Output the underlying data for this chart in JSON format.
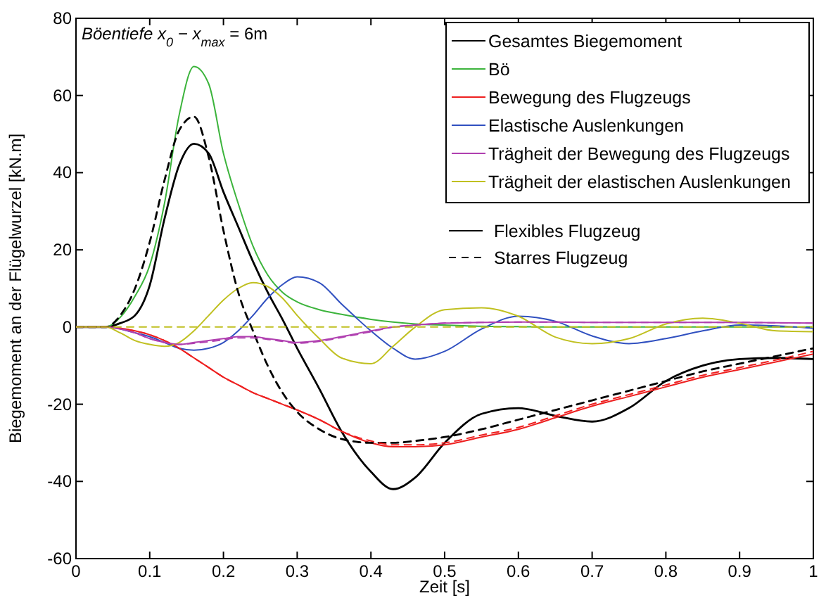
{
  "chart_data": {
    "type": "line",
    "xlabel": "Zeit [s]",
    "ylabel": "Biegemoment an der Flügelwurzel [kN.m]",
    "xlim": [
      0,
      1
    ],
    "xticks": [
      0,
      0.1,
      0.2,
      0.3,
      0.4,
      0.5,
      0.6,
      0.7,
      0.8,
      0.9,
      1
    ],
    "ylim": [
      -60,
      80
    ],
    "yticks": [
      -60,
      -40,
      -20,
      0,
      20,
      40,
      60,
      80
    ],
    "grid": false,
    "legend": "top right",
    "annotations": [
      "Böentiefe   x$_{0}$ − x$_{max}$ =  6m",
      "Flexibles Flugzeug",
      "Starres Flugzeug"
    ],
    "x": [
      0,
      0.04,
      0.06,
      0.08,
      0.1,
      0.12,
      0.14,
      0.16,
      0.18,
      0.2,
      0.22,
      0.24,
      0.26,
      0.28,
      0.3,
      0.33,
      0.36,
      0.4,
      0.43,
      0.46,
      0.5,
      0.55,
      0.6,
      0.65,
      0.7,
      0.75,
      0.8,
      0.85,
      0.9,
      0.95,
      1
    ],
    "series": [
      {
        "name": "Gesamtes Biegemoment",
        "color": "#000000",
        "line_style": "solid",
        "values": [
          0,
          0,
          1,
          3,
          10.8,
          28,
          42,
          47.5,
          45,
          35,
          26,
          17,
          9,
          2,
          -5.5,
          -16,
          -27,
          -37.5,
          -42,
          -39,
          -30,
          -22.5,
          -21,
          -23,
          -24.5,
          -21,
          -14,
          -10,
          -8.3,
          -8,
          -8.3
        ]
      },
      {
        "name": "Bö",
        "color": "#3cb43c",
        "line_style": "solid",
        "values": [
          0,
          0,
          2.5,
          8,
          16,
          32,
          55,
          67.5,
          63,
          45,
          32,
          21,
          13.5,
          9,
          6.5,
          4.5,
          3.3,
          2,
          1.3,
          0.8,
          0.5,
          0.2,
          0.1,
          0,
          0,
          0,
          0,
          0,
          0,
          0,
          0
        ]
      },
      {
        "name": "Bewegung des Flugzeugs",
        "color": "#ee2020",
        "line_style": "solid",
        "values": [
          0,
          0,
          -0.3,
          -1,
          -2,
          -3.5,
          -5.5,
          -8,
          -10.5,
          -13,
          -15,
          -17,
          -18.5,
          -20,
          -21.5,
          -24,
          -27,
          -30,
          -31,
          -31,
          -30.5,
          -28.5,
          -26.5,
          -23.5,
          -20.5,
          -18,
          -15.5,
          -13,
          -11,
          -9,
          -7
        ]
      },
      {
        "name": "Elastische Auslenkungen",
        "color": "#3050c0",
        "line_style": "solid",
        "values": [
          null,
          null,
          -0.5,
          -1.5,
          -2.5,
          -4,
          -5.5,
          -6,
          -5.5,
          -4,
          -1,
          3,
          7.5,
          11,
          13,
          11.5,
          6,
          -1,
          -5.5,
          -8.3,
          -6.3,
          -0.5,
          2.8,
          1.5,
          -2.3,
          -4.3,
          -3,
          -1,
          0.5,
          0.3,
          -0.3
        ]
      },
      {
        "name": "Trägheit der Bewegung des Flugzeugs",
        "color": "#b040b0",
        "line_style": "solid",
        "values": [
          0,
          0,
          -0.5,
          -1.5,
          -3,
          -4,
          -4.5,
          -4,
          -3.5,
          -3,
          -2.5,
          -2.5,
          -3,
          -3.5,
          -4,
          -3.5,
          -2.5,
          -1,
          0,
          0.5,
          1,
          1.2,
          1.3,
          1.3,
          1.2,
          1.2,
          1.2,
          1.2,
          1.2,
          1.1,
          1
        ]
      },
      {
        "name": "Trägheit der elastischen Auslenkungen",
        "color": "#c0c020",
        "line_style": "solid",
        "values": [
          0,
          0,
          -1.5,
          -3.5,
          -4.5,
          -5,
          -4,
          -1,
          3,
          7,
          10,
          11.5,
          10.5,
          7.5,
          3,
          -3,
          -8,
          -9.5,
          -5,
          0,
          4.5,
          5,
          2.8,
          -2.6,
          -4.3,
          -3,
          0.8,
          2.3,
          1,
          -1,
          -1.2
        ]
      },
      {
        "color": "#000000",
        "line_style": "dashed",
        "values": [
          0,
          0,
          3,
          10,
          22,
          38,
          51,
          54.5,
          44,
          25,
          9,
          -1,
          -10,
          -17,
          -22,
          -26.5,
          -29,
          -30,
          -30,
          -29.5,
          -28.5,
          -26.5,
          -24,
          -21.5,
          -19,
          -16.5,
          -14,
          -11.5,
          -9.5,
          -7.5,
          -5.5
        ]
      },
      {
        "color": "#ee2020",
        "line_style": "dashed",
        "values": [
          0,
          0,
          -0.3,
          -1,
          -2,
          -3.5,
          -5.5,
          -8,
          -10.5,
          -13,
          -15,
          -17,
          -18.5,
          -20,
          -21.5,
          -24,
          -27,
          -29.5,
          -30.5,
          -30.5,
          -30,
          -28,
          -26,
          -23,
          -20,
          -17.5,
          -15,
          -12.5,
          -10.5,
          -8.5,
          -6.3
        ]
      },
      {
        "color": "#b040b0",
        "line_style": "dashed",
        "values": [
          0,
          0,
          -0.5,
          -1.5,
          -3,
          -4,
          -4.5,
          -4.2,
          -3.8,
          -3.3,
          -2.8,
          -2.8,
          -3.2,
          -3.7,
          -4.2,
          -3.7,
          -2.7,
          -1.2,
          0,
          0.5,
          1,
          1.2,
          1.3,
          1.3,
          1.2,
          1.2,
          1.2,
          1.2,
          1.2,
          1.1,
          1
        ]
      },
      {
        "color": "#c0c020",
        "line_style": "dashed",
        "x": [
          0,
          1
        ],
        "values": [
          0,
          0
        ]
      }
    ]
  }
}
